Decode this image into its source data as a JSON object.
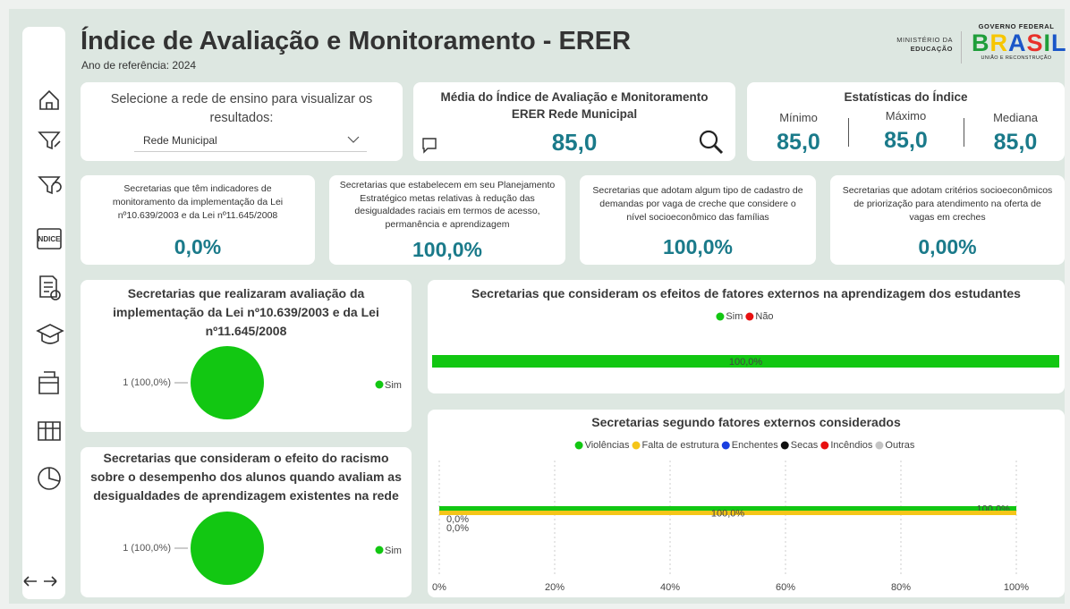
{
  "header": {
    "title": "Índice de Avaliação e Monitoramento - ERER",
    "subtitle": "Ano de referência: 2024",
    "ministry_1": "MINISTÉRIO DA",
    "ministry_2": "EDUCAÇÃO",
    "government": "GOVERNO FEDERAL",
    "brand": "BRASIL",
    "slogan": "UNIÃO E RECONSTRUÇÃO"
  },
  "nav": {
    "index_icon": "NDICE"
  },
  "filter": {
    "prompt": "Selecione a rede de ensino para visualizar os resultados:",
    "selected": "Rede Municipal"
  },
  "average": {
    "title": "Média do Índice de Avaliação e Monitoramento ERER Rede Municipal",
    "value": "85,0"
  },
  "stats": {
    "title": "Estatísticas do Índice",
    "items": [
      {
        "label": "Mínimo",
        "value": "85,0"
      },
      {
        "label": "Máximo",
        "value": "85,0"
      },
      {
        "label": "Mediana",
        "value": "85,0"
      }
    ]
  },
  "kpis": [
    {
      "text": "Secretarias que têm indicadores de monitoramento da implementação da Lei nº10.639/2003 e da Lei nº11.645/2008",
      "value": "0,0%"
    },
    {
      "text": "Secretarias que estabelecem em seu Planejamento Estratégico metas relativas à redução das desigualdades raciais em termos de acesso, permanência e aprendizagem",
      "value": "100,0%"
    },
    {
      "text": "Secretarias que adotam algum tipo de cadastro de demandas por vaga de creche que considere o nível socioeconômico das famílias",
      "value": "100,0%"
    },
    {
      "text": "Secretarias que adotam critérios socioeconômicos de priorização para atendimento na oferta de vagas em creches",
      "value": "0,00%"
    }
  ],
  "chart_data": [
    {
      "type": "pie",
      "title": "Secretarias que realizaram avaliação da implementação da Lei nº10.639/2003 e da Lei nº11.645/2008",
      "categories": [
        "Sim"
      ],
      "values": [
        1
      ],
      "value_labels": [
        "1 (100,0%)"
      ],
      "colors": [
        "#12c712"
      ],
      "legend": "right"
    },
    {
      "type": "pie",
      "title": "Secretarias que consideram o efeito do racismo sobre o desempenho dos alunos quando avaliam as desigualdades de aprendizagem existentes na rede",
      "categories": [
        "Sim"
      ],
      "values": [
        1
      ],
      "value_labels": [
        "1 (100,0%)"
      ],
      "colors": [
        "#12c712"
      ],
      "legend": "right"
    },
    {
      "type": "bar",
      "orientation": "horizontal",
      "stacked": true,
      "title": "Secretarias que consideram os efeitos de fatores externos na aprendizagem dos estudantes",
      "legend": "top",
      "series": [
        {
          "name": "Sim",
          "color": "#12c712",
          "values": [
            100
          ],
          "value_labels": [
            "100,0%"
          ]
        },
        {
          "name": "Não",
          "color": "#e81010",
          "values": [
            0
          ],
          "value_labels": [
            null
          ]
        }
      ]
    },
    {
      "type": "bar",
      "orientation": "horizontal",
      "stacked": false,
      "title": "Secretarias segundo fatores externos considerados",
      "legend": "top",
      "grid": true,
      "xlim": [
        0,
        100
      ],
      "xticks": [
        {
          "value": 0,
          "label": "0%"
        },
        {
          "value": 20,
          "label": "20%"
        },
        {
          "value": 40,
          "label": "40%"
        },
        {
          "value": 60,
          "label": "60%"
        },
        {
          "value": 80,
          "label": "80%"
        },
        {
          "value": 100,
          "label": "100%"
        }
      ],
      "series": [
        {
          "name": "Violências",
          "color": "#12c712",
          "values": [
            100
          ],
          "value_labels": [
            "100,0%"
          ]
        },
        {
          "name": "Falta de estrutura",
          "color": "#f5c518",
          "values": [
            100
          ],
          "value_labels": [
            "100,0%"
          ]
        },
        {
          "name": "Enchentes",
          "color": "#1a3fe0",
          "values": [
            0
          ],
          "value_labels": [
            "0,0%"
          ]
        },
        {
          "name": "Secas",
          "color": "#111111",
          "values": [
            0
          ],
          "value_labels": [
            "0,0%"
          ]
        },
        {
          "name": "Incêndios",
          "color": "#e81010",
          "values": [
            null
          ],
          "value_labels": [
            null
          ]
        },
        {
          "name": "Outras",
          "color": "#c4c4c4",
          "values": [
            null
          ],
          "value_labels": [
            null
          ]
        }
      ]
    }
  ]
}
